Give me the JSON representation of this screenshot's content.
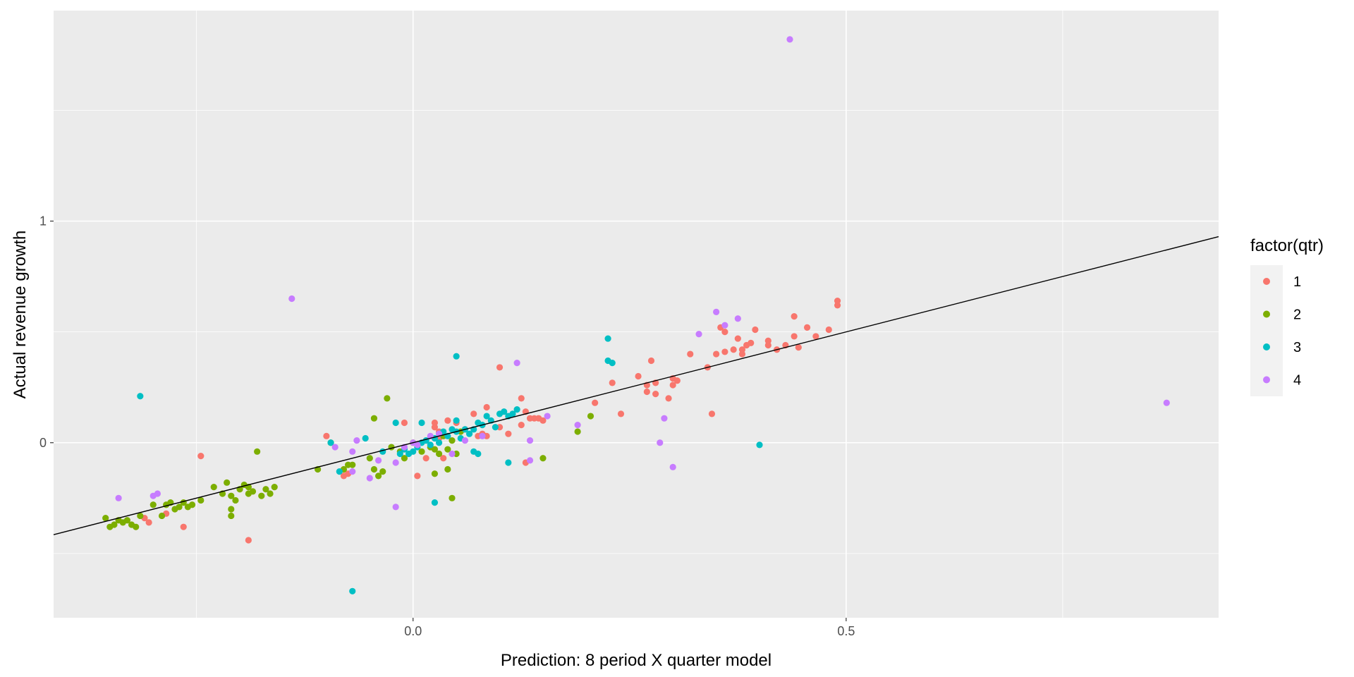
{
  "chart_data": {
    "type": "scatter",
    "title": "",
    "xlabel": "Prediction: 8 period X quarter model",
    "ylabel": "Actual revenue growth",
    "xlim": [
      -0.415,
      0.93
    ],
    "ylim": [
      -0.79,
      1.95
    ],
    "x_ticks": [
      0.0,
      0.5
    ],
    "x_tick_labels": [
      "0.0",
      "0.5"
    ],
    "x_minor_ticks": [
      -0.25,
      0.75
    ],
    "y_ticks": [
      0,
      1
    ],
    "y_tick_labels": [
      "0",
      "1"
    ],
    "y_minor_ticks": [
      -0.5,
      0.5,
      1.5
    ],
    "grid": true,
    "panel_background": "#ebebeb",
    "grid_color": "#ffffff",
    "reference_line": {
      "label": "",
      "intercept": 0,
      "slope": 1,
      "color": "#000000"
    },
    "legend": {
      "title": "factor(qtr)",
      "position": "right"
    },
    "series": [
      {
        "name": "1",
        "color": "#f8766d",
        "points": [
          [
            0.49,
            0.64
          ],
          [
            0.49,
            0.62
          ],
          [
            0.48,
            0.51
          ],
          [
            0.465,
            0.48
          ],
          [
            0.455,
            0.52
          ],
          [
            0.44,
            0.57
          ],
          [
            0.44,
            0.48
          ],
          [
            0.445,
            0.43
          ],
          [
            0.43,
            0.44
          ],
          [
            0.42,
            0.42
          ],
          [
            0.41,
            0.46
          ],
          [
            0.41,
            0.44
          ],
          [
            0.395,
            0.51
          ],
          [
            0.39,
            0.45
          ],
          [
            0.385,
            0.44
          ],
          [
            0.38,
            0.42
          ],
          [
            0.38,
            0.4
          ],
          [
            0.375,
            0.47
          ],
          [
            0.37,
            0.42
          ],
          [
            0.36,
            0.5
          ],
          [
            0.36,
            0.41
          ],
          [
            0.35,
            0.4
          ],
          [
            0.34,
            0.34
          ],
          [
            0.32,
            0.4
          ],
          [
            0.3,
            0.29
          ],
          [
            0.275,
            0.37
          ],
          [
            0.28,
            0.27
          ],
          [
            0.27,
            0.26
          ],
          [
            0.27,
            0.23
          ],
          [
            0.26,
            0.3
          ],
          [
            0.28,
            0.22
          ],
          [
            0.295,
            0.2
          ],
          [
            0.3,
            0.26
          ],
          [
            0.305,
            0.28
          ],
          [
            0.23,
            0.27
          ],
          [
            0.24,
            0.13
          ],
          [
            0.21,
            0.18
          ],
          [
            0.345,
            0.13
          ],
          [
            0.355,
            0.52
          ],
          [
            0.1,
            0.34
          ],
          [
            0.125,
            0.2
          ],
          [
            0.13,
            0.14
          ],
          [
            0.135,
            0.11
          ],
          [
            0.14,
            0.11
          ],
          [
            0.145,
            0.11
          ],
          [
            0.15,
            0.1
          ],
          [
            0.125,
            0.08
          ],
          [
            0.13,
            -0.09
          ],
          [
            0.1,
            0.07
          ],
          [
            0.11,
            0.04
          ],
          [
            0.085,
            0.16
          ],
          [
            0.07,
            0.13
          ],
          [
            0.08,
            0.04
          ],
          [
            0.075,
            0.03
          ],
          [
            0.085,
            0.03
          ],
          [
            0.06,
            0.06
          ],
          [
            0.05,
            0.09
          ],
          [
            0.04,
            0.1
          ],
          [
            0.025,
            0.09
          ],
          [
            0.025,
            0.07
          ],
          [
            0.03,
            0.05
          ],
          [
            0.03,
            0.02
          ],
          [
            0.035,
            -0.07
          ],
          [
            0.015,
            0.01
          ],
          [
            0.005,
            -0.01
          ],
          [
            0.0,
            0.0
          ],
          [
            -0.01,
            0.09
          ],
          [
            0.005,
            -0.15
          ],
          [
            0.015,
            -0.07
          ],
          [
            -0.1,
            0.03
          ],
          [
            -0.08,
            -0.15
          ],
          [
            -0.075,
            -0.14
          ],
          [
            -0.245,
            -0.06
          ],
          [
            -0.19,
            -0.44
          ],
          [
            -0.265,
            -0.38
          ],
          [
            -0.285,
            -0.32
          ],
          [
            -0.305,
            -0.36
          ],
          [
            -0.31,
            -0.34
          ]
        ]
      },
      {
        "name": "2",
        "color": "#7cae00",
        "points": [
          [
            -0.355,
            -0.34
          ],
          [
            -0.35,
            -0.38
          ],
          [
            -0.345,
            -0.37
          ],
          [
            -0.34,
            -0.35
          ],
          [
            -0.335,
            -0.36
          ],
          [
            -0.33,
            -0.35
          ],
          [
            -0.325,
            -0.37
          ],
          [
            -0.32,
            -0.38
          ],
          [
            -0.315,
            -0.33
          ],
          [
            -0.3,
            -0.28
          ],
          [
            -0.29,
            -0.33
          ],
          [
            -0.285,
            -0.28
          ],
          [
            -0.28,
            -0.27
          ],
          [
            -0.275,
            -0.3
          ],
          [
            -0.27,
            -0.29
          ],
          [
            -0.265,
            -0.27
          ],
          [
            -0.26,
            -0.29
          ],
          [
            -0.255,
            -0.28
          ],
          [
            -0.245,
            -0.26
          ],
          [
            -0.23,
            -0.2
          ],
          [
            -0.22,
            -0.23
          ],
          [
            -0.215,
            -0.18
          ],
          [
            -0.21,
            -0.24
          ],
          [
            -0.21,
            -0.3
          ],
          [
            -0.21,
            -0.33
          ],
          [
            -0.205,
            -0.26
          ],
          [
            -0.2,
            -0.21
          ],
          [
            -0.195,
            -0.19
          ],
          [
            -0.19,
            -0.2
          ],
          [
            -0.19,
            -0.23
          ],
          [
            -0.185,
            -0.22
          ],
          [
            -0.18,
            -0.04
          ],
          [
            -0.175,
            -0.24
          ],
          [
            -0.17,
            -0.21
          ],
          [
            -0.165,
            -0.23
          ],
          [
            -0.16,
            -0.2
          ],
          [
            -0.11,
            -0.12
          ],
          [
            -0.08,
            -0.12
          ],
          [
            -0.075,
            -0.1
          ],
          [
            -0.07,
            -0.1
          ],
          [
            -0.05,
            -0.07
          ],
          [
            -0.045,
            -0.12
          ],
          [
            -0.045,
            0.11
          ],
          [
            -0.04,
            -0.15
          ],
          [
            -0.035,
            -0.13
          ],
          [
            -0.03,
            0.2
          ],
          [
            -0.025,
            -0.02
          ],
          [
            -0.015,
            -0.04
          ],
          [
            -0.01,
            -0.07
          ],
          [
            0.0,
            0.0
          ],
          [
            0.01,
            -0.04
          ],
          [
            0.02,
            -0.02
          ],
          [
            0.025,
            -0.03
          ],
          [
            0.03,
            -0.05
          ],
          [
            0.035,
            0.03
          ],
          [
            0.04,
            -0.03
          ],
          [
            0.045,
            0.01
          ],
          [
            0.05,
            -0.05
          ],
          [
            0.04,
            -0.12
          ],
          [
            0.045,
            -0.25
          ],
          [
            0.025,
            -0.14
          ],
          [
            0.055,
            0.05
          ],
          [
            0.15,
            -0.07
          ],
          [
            0.19,
            0.05
          ],
          [
            0.205,
            0.12
          ],
          [
            -0.095,
            0.0
          ]
        ]
      },
      {
        "name": "3",
        "color": "#00bfc4",
        "points": [
          [
            -0.315,
            0.21
          ],
          [
            -0.095,
            0.0
          ],
          [
            -0.085,
            -0.13
          ],
          [
            -0.07,
            -0.67
          ],
          [
            -0.055,
            0.02
          ],
          [
            -0.035,
            -0.04
          ],
          [
            -0.02,
            0.09
          ],
          [
            -0.015,
            -0.05
          ],
          [
            -0.01,
            -0.03
          ],
          [
            -0.005,
            -0.05
          ],
          [
            0.0,
            -0.04
          ],
          [
            0.005,
            -0.02
          ],
          [
            0.01,
            0.0
          ],
          [
            0.015,
            0.01
          ],
          [
            0.02,
            -0.01
          ],
          [
            0.025,
            0.02
          ],
          [
            0.03,
            0.0
          ],
          [
            0.035,
            0.05
          ],
          [
            0.04,
            0.03
          ],
          [
            0.045,
            0.06
          ],
          [
            0.05,
            0.05
          ],
          [
            0.05,
            0.1
          ],
          [
            0.055,
            0.02
          ],
          [
            0.06,
            0.06
          ],
          [
            0.065,
            0.04
          ],
          [
            0.07,
            0.06
          ],
          [
            0.075,
            0.09
          ],
          [
            0.08,
            0.08
          ],
          [
            0.085,
            0.12
          ],
          [
            0.09,
            0.1
          ],
          [
            0.095,
            0.07
          ],
          [
            0.1,
            0.13
          ],
          [
            0.105,
            0.14
          ],
          [
            0.11,
            0.12
          ],
          [
            0.115,
            0.13
          ],
          [
            0.12,
            0.15
          ],
          [
            0.07,
            -0.04
          ],
          [
            0.075,
            -0.05
          ],
          [
            0.11,
            -0.09
          ],
          [
            0.05,
            0.39
          ],
          [
            0.025,
            -0.27
          ],
          [
            0.225,
            0.47
          ],
          [
            0.225,
            0.37
          ],
          [
            0.23,
            0.36
          ],
          [
            0.4,
            -0.01
          ],
          [
            0.01,
            0.09
          ]
        ]
      },
      {
        "name": "4",
        "color": "#c77cff",
        "points": [
          [
            0.435,
            1.82
          ],
          [
            0.87,
            0.18
          ],
          [
            -0.14,
            0.65
          ],
          [
            -0.34,
            -0.25
          ],
          [
            -0.295,
            -0.23
          ],
          [
            -0.3,
            -0.24
          ],
          [
            -0.09,
            -0.02
          ],
          [
            -0.07,
            -0.04
          ],
          [
            -0.05,
            -0.16
          ],
          [
            -0.04,
            -0.08
          ],
          [
            -0.02,
            -0.09
          ],
          [
            -0.02,
            -0.29
          ],
          [
            -0.01,
            -0.02
          ],
          [
            0.0,
            0.0
          ],
          [
            0.005,
            -0.01
          ],
          [
            0.02,
            0.03
          ],
          [
            0.03,
            0.04
          ],
          [
            0.045,
            -0.05
          ],
          [
            0.06,
            0.01
          ],
          [
            0.08,
            0.03
          ],
          [
            0.12,
            0.36
          ],
          [
            0.135,
            0.01
          ],
          [
            0.135,
            -0.08
          ],
          [
            0.155,
            0.12
          ],
          [
            0.19,
            0.08
          ],
          [
            0.285,
            0.0
          ],
          [
            0.29,
            0.11
          ],
          [
            0.3,
            -0.11
          ],
          [
            0.33,
            0.49
          ],
          [
            0.35,
            0.59
          ],
          [
            0.36,
            0.53
          ],
          [
            0.375,
            0.56
          ],
          [
            -0.07,
            -0.13
          ],
          [
            -0.065,
            0.01
          ]
        ]
      }
    ]
  }
}
